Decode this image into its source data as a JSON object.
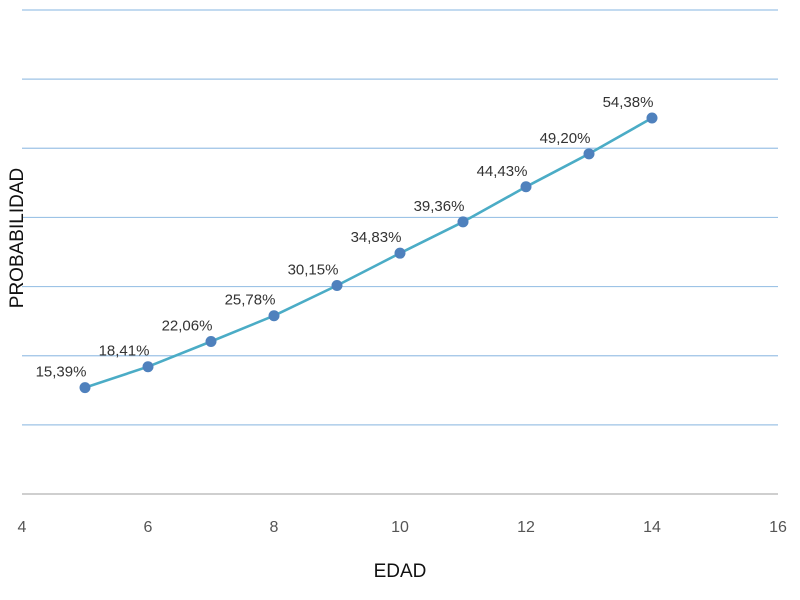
{
  "chart_data": {
    "type": "line",
    "title": "",
    "xlabel": "EDAD",
    "ylabel": "PROBABILIDAD",
    "xlim": [
      4,
      16
    ],
    "ylim": [
      0,
      70
    ],
    "xticks": [
      4,
      6,
      8,
      10,
      12,
      14,
      16
    ],
    "y_gridlines": [
      0,
      10,
      20,
      30,
      40,
      50,
      60,
      70
    ],
    "grid": "horizontal",
    "legend": "none",
    "colors": {
      "line": "#4bacc6",
      "marker": "#4f81bd",
      "gridline": "#9dc3e6"
    },
    "series": [
      {
        "x": [
          5,
          6,
          7,
          8,
          9,
          10,
          11,
          12,
          13,
          14
        ],
        "values": [
          15.39,
          18.41,
          22.06,
          25.78,
          30.15,
          34.83,
          39.36,
          44.43,
          49.2,
          54.38
        ],
        "labels": [
          "15,39%",
          "18,41%",
          "22,06%",
          "25,78%",
          "30,15%",
          "34,83%",
          "39,36%",
          "44,43%",
          "49,20%",
          "54,38%"
        ]
      }
    ]
  }
}
